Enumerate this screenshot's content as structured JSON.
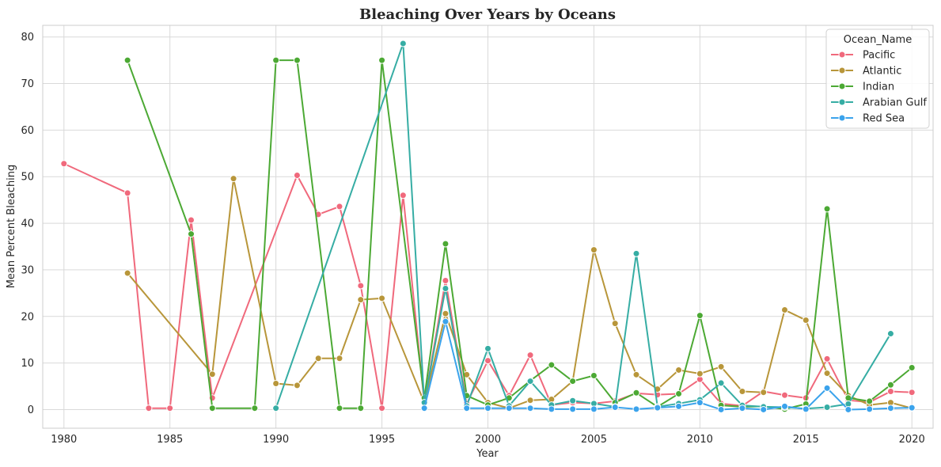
{
  "chart_data": {
    "type": "line",
    "title": "Bleaching Over Years by Oceans",
    "xlabel": "Year",
    "ylabel": "Mean Percent Bleaching",
    "xlim": [
      1979,
      2021
    ],
    "ylim": [
      -4,
      82.5
    ],
    "xticks": [
      1980,
      1985,
      1990,
      1995,
      2000,
      2005,
      2010,
      2015,
      2020
    ],
    "yticks": [
      0,
      10,
      20,
      30,
      40,
      50,
      60,
      70,
      80
    ],
    "grid": true,
    "legend": {
      "title": "Ocean_Name",
      "placement": "top-right"
    },
    "series": [
      {
        "name": "Pacific",
        "color": "#f0697c",
        "points": [
          [
            1980,
            52.8
          ],
          [
            1983,
            46.5
          ],
          [
            1984,
            0.3
          ],
          [
            1985,
            0.3
          ],
          [
            1986,
            40.7
          ],
          [
            1987,
            2.5
          ],
          [
            1991,
            50.3
          ],
          [
            1992,
            41.9
          ],
          [
            1993,
            43.6
          ],
          [
            1994,
            26.6
          ],
          [
            1995,
            0.3
          ],
          [
            1996,
            46.0
          ],
          [
            1997,
            1.5
          ],
          [
            1998,
            27.7
          ],
          [
            1999,
            1.3
          ],
          [
            2000,
            10.5
          ],
          [
            2001,
            3.0
          ],
          [
            2002,
            11.7
          ],
          [
            2003,
            1.0
          ],
          [
            2004,
            1.5
          ],
          [
            2005,
            1.3
          ],
          [
            2006,
            1.8
          ],
          [
            2007,
            3.5
          ],
          [
            2008,
            3.2
          ],
          [
            2009,
            3.4
          ],
          [
            2010,
            6.5
          ],
          [
            2011,
            1.3
          ],
          [
            2012,
            0.8
          ],
          [
            2013,
            3.9
          ],
          [
            2014,
            3.1
          ],
          [
            2015,
            2.5
          ],
          [
            2016,
            10.9
          ],
          [
            2017,
            2.0
          ],
          [
            2018,
            1.6
          ],
          [
            2019,
            3.9
          ],
          [
            2020,
            3.7
          ]
        ]
      },
      {
        "name": "Atlantic",
        "color": "#b8963a",
        "points": [
          [
            1983,
            29.3
          ],
          [
            1987,
            7.6
          ],
          [
            1988,
            49.6
          ],
          [
            1990,
            5.6
          ],
          [
            1991,
            5.2
          ],
          [
            1992,
            11.0
          ],
          [
            1993,
            11.0
          ],
          [
            1994,
            23.6
          ],
          [
            1995,
            23.9
          ],
          [
            1997,
            1.5
          ],
          [
            1998,
            20.6
          ],
          [
            1999,
            7.5
          ],
          [
            2000,
            1.5
          ],
          [
            2001,
            0.3
          ],
          [
            2002,
            2.0
          ],
          [
            2003,
            2.2
          ],
          [
            2004,
            6.1
          ],
          [
            2005,
            34.3
          ],
          [
            2006,
            18.5
          ],
          [
            2007,
            7.5
          ],
          [
            2008,
            4.4
          ],
          [
            2009,
            8.5
          ],
          [
            2010,
            7.7
          ],
          [
            2011,
            9.2
          ],
          [
            2012,
            3.9
          ],
          [
            2013,
            3.7
          ],
          [
            2014,
            21.4
          ],
          [
            2015,
            19.2
          ],
          [
            2016,
            7.8
          ],
          [
            2017,
            3.0
          ],
          [
            2018,
            1.0
          ],
          [
            2019,
            1.5
          ],
          [
            2020,
            0.3
          ]
        ]
      },
      {
        "name": "Indian",
        "color": "#4ca934",
        "points": [
          [
            1983,
            75.0
          ],
          [
            1986,
            37.7
          ],
          [
            1987,
            0.3
          ],
          [
            1989,
            0.3
          ],
          [
            1990,
            75.0
          ],
          [
            1991,
            75.0
          ],
          [
            1993,
            0.3
          ],
          [
            1994,
            0.3
          ],
          [
            1995,
            75.0
          ],
          [
            1997,
            2.5
          ],
          [
            1998,
            35.6
          ],
          [
            1999,
            3.0
          ],
          [
            2000,
            1.0
          ],
          [
            2001,
            2.5
          ],
          [
            2002,
            6.2
          ],
          [
            2003,
            9.6
          ],
          [
            2004,
            6.1
          ],
          [
            2005,
            7.3
          ],
          [
            2006,
            1.5
          ],
          [
            2007,
            3.6
          ],
          [
            2008,
            0.6
          ],
          [
            2009,
            3.4
          ],
          [
            2010,
            20.2
          ],
          [
            2011,
            0.9
          ],
          [
            2012,
            0.6
          ],
          [
            2013,
            0.7
          ],
          [
            2014,
            0.1
          ],
          [
            2015,
            1.2
          ],
          [
            2016,
            43.1
          ],
          [
            2017,
            2.5
          ],
          [
            2018,
            1.8
          ],
          [
            2019,
            5.3
          ],
          [
            2020,
            9.0
          ]
        ]
      },
      {
        "name": "Arabian Gulf",
        "color": "#36ada4",
        "points": [
          [
            1990,
            0.3
          ],
          [
            1996,
            78.6
          ],
          [
            1997,
            1.5
          ],
          [
            1998,
            26.0
          ],
          [
            1999,
            0.8
          ],
          [
            2000,
            13.1
          ],
          [
            2001,
            0.8
          ],
          [
            2002,
            6.1
          ],
          [
            2003,
            1.0
          ],
          [
            2004,
            1.9
          ],
          [
            2005,
            1.3
          ],
          [
            2006,
            0.6
          ],
          [
            2007,
            33.5
          ],
          [
            2008,
            0.6
          ],
          [
            2009,
            1.3
          ],
          [
            2010,
            2.1
          ],
          [
            2011,
            5.7
          ],
          [
            2012,
            0.9
          ],
          [
            2013,
            0.6
          ],
          [
            2014,
            0.5
          ],
          [
            2015,
            0.2
          ],
          [
            2016,
            0.5
          ],
          [
            2017,
            1.2
          ],
          [
            2019,
            16.3
          ]
        ]
      },
      {
        "name": "Red Sea",
        "color": "#3ba3ec",
        "points": [
          [
            1997,
            0.3
          ],
          [
            1998,
            18.9
          ],
          [
            1999,
            0.3
          ],
          [
            2000,
            0.3
          ],
          [
            2001,
            0.3
          ],
          [
            2002,
            0.3
          ],
          [
            2003,
            0.1
          ],
          [
            2004,
            0.1
          ],
          [
            2005,
            0.1
          ],
          [
            2006,
            0.5
          ],
          [
            2007,
            0.1
          ],
          [
            2008,
            0.4
          ],
          [
            2009,
            0.7
          ],
          [
            2010,
            1.5
          ],
          [
            2011,
            0.0
          ],
          [
            2012,
            0.3
          ],
          [
            2013,
            0.0
          ],
          [
            2014,
            0.7
          ],
          [
            2015,
            0.1
          ],
          [
            2016,
            4.6
          ],
          [
            2017,
            0.0
          ],
          [
            2018,
            0.1
          ],
          [
            2019,
            0.3
          ],
          [
            2020,
            0.4
          ]
        ]
      }
    ]
  }
}
